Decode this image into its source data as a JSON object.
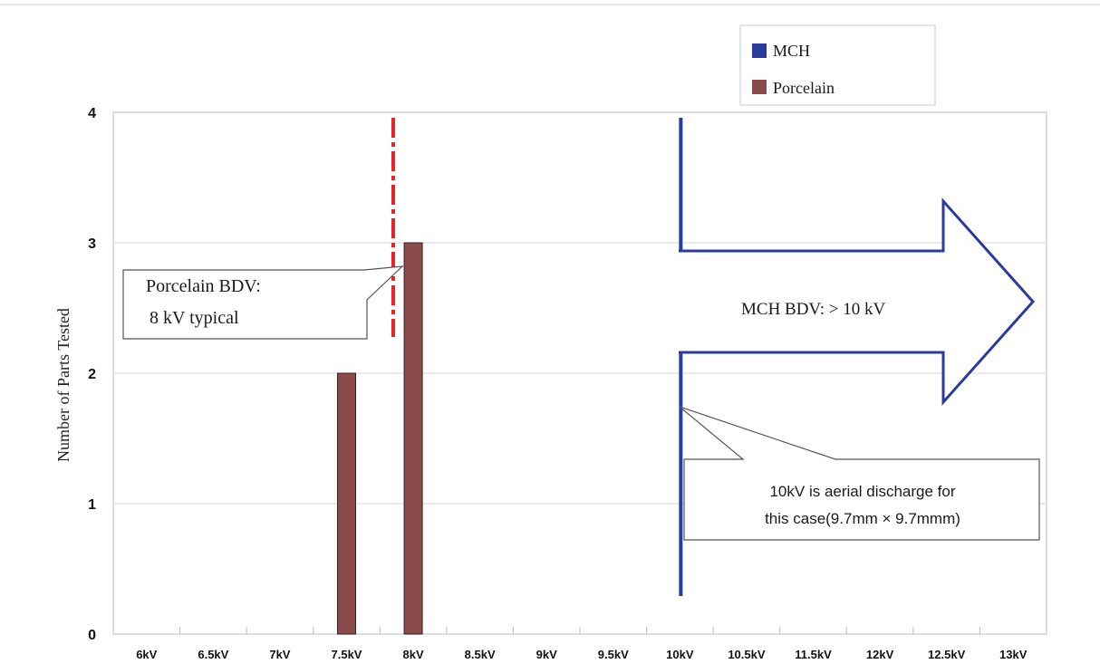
{
  "chart_data": {
    "type": "bar",
    "categories": [
      "6kV",
      "6.5kV",
      "7kV",
      "7.5kV",
      "8kV",
      "8.5kV",
      "9kV",
      "9.5kV",
      "10kV",
      "10.5kV",
      "11.5kV",
      "12kV",
      "12.5kV",
      "13kV"
    ],
    "series": [
      {
        "name": "MCH",
        "color": "#2b3a9e",
        "values": [
          0,
          0,
          0,
          0,
          0,
          0,
          0,
          0,
          0,
          0,
          0,
          0,
          0,
          0
        ]
      },
      {
        "name": "Porcelain",
        "color": "#8a4a4a",
        "values": [
          0,
          0,
          0,
          2,
          3,
          0,
          0,
          0,
          0,
          0,
          0,
          0,
          0,
          0
        ]
      }
    ],
    "ylabel": "Number of Parts Tested",
    "ylim": [
      0,
      4
    ],
    "yticks": [
      0,
      1,
      2,
      3,
      4
    ],
    "grid": true,
    "legend_position": "top-right",
    "colors": {
      "porcelain_line": "#e8232a",
      "mch_line": "#2b3a9e"
    },
    "markers": [
      {
        "name": "porcelain-bdv-line",
        "at": "8kV",
        "style": "dashed"
      },
      {
        "name": "mch-bdv-line",
        "at": "10kV",
        "style": "solid"
      }
    ],
    "annotations": {
      "porcelain_bdv_line1": "Porcelain BDV:",
      "porcelain_bdv_line2": "8 kV typical",
      "mch_bdv": "MCH BDV: > 10 kV",
      "aerial_line1": "10kV is aerial discharge for",
      "aerial_line2": "this case(9.7mm × 9.7mmm)"
    }
  }
}
